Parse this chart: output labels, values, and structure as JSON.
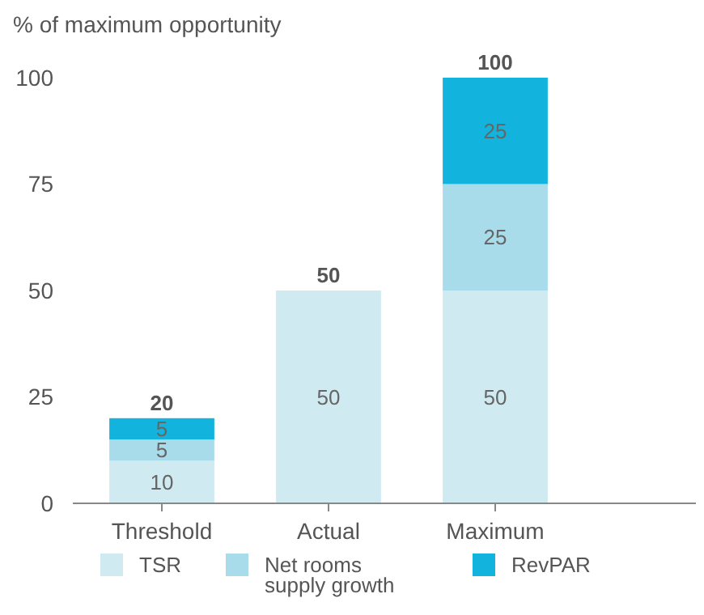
{
  "chart_data": {
    "type": "bar",
    "ylabel": "% of maximum opportunity",
    "categories": [
      "Threshold",
      "Actual",
      "Maximum"
    ],
    "stacked": true,
    "ylim": [
      0,
      100
    ],
    "yticks": [
      0,
      25,
      50,
      75,
      100
    ],
    "legend": "bottom",
    "totals": [
      "20",
      "50",
      "100"
    ],
    "series": [
      {
        "name": "TSR",
        "color": "#d0eaf2",
        "values": [
          10,
          50,
          50
        ],
        "value_labels": [
          "10",
          "50",
          "50"
        ]
      },
      {
        "name": "Net rooms supply growth",
        "color": "#a8dcea",
        "values": [
          5,
          0,
          25
        ],
        "value_labels": [
          "5",
          null,
          "25"
        ]
      },
      {
        "name": "RevPAR",
        "color": "#12b3dc",
        "values": [
          5,
          0,
          25
        ],
        "value_labels": [
          "5",
          null,
          "25"
        ]
      }
    ]
  }
}
